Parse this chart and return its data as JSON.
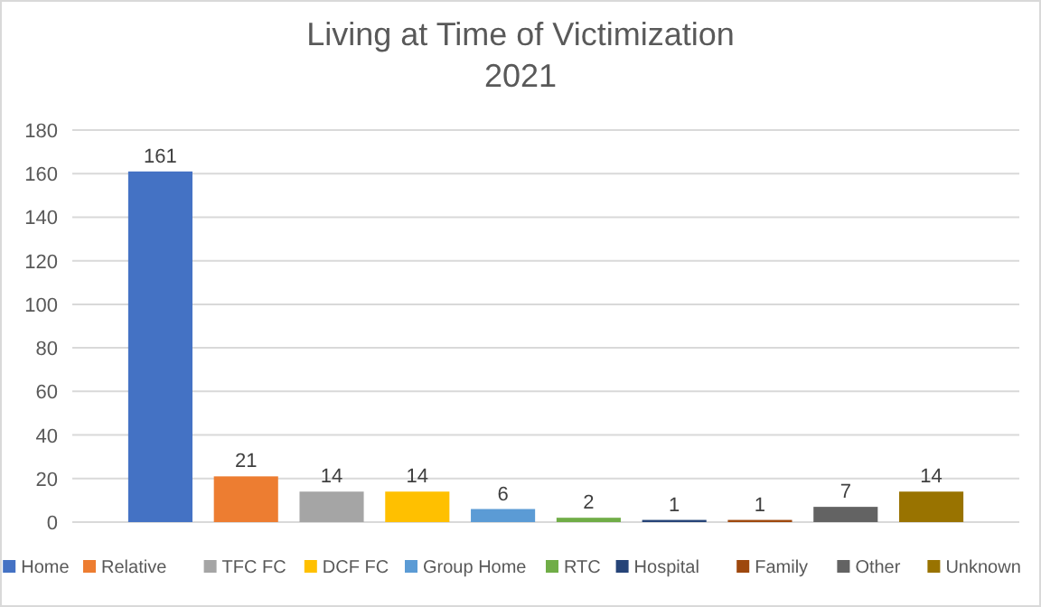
{
  "chart_data": {
    "type": "bar",
    "title": "Living at Time of Victimization",
    "subtitle": "2021",
    "categories": [
      null
    ],
    "series": [
      {
        "name": "Home",
        "color": "#4472c4",
        "values": [
          161
        ]
      },
      {
        "name": "Relative",
        "color": "#ed7d31",
        "values": [
          21
        ]
      },
      {
        "name": "TFC FC",
        "color": "#a5a5a5",
        "values": [
          14
        ]
      },
      {
        "name": "DCF FC",
        "color": "#ffc000",
        "values": [
          14
        ]
      },
      {
        "name": "Group Home",
        "color": "#5b9bd5",
        "values": [
          6
        ]
      },
      {
        "name": "RTC",
        "color": "#70ad47",
        "values": [
          2
        ]
      },
      {
        "name": "Hospital",
        "color": "#264478",
        "values": [
          1
        ]
      },
      {
        "name": "Family",
        "color": "#9e480e",
        "values": [
          1
        ]
      },
      {
        "name": "Other",
        "color": "#636363",
        "values": [
          7
        ]
      },
      {
        "name": "Unknown",
        "color": "#997300",
        "values": [
          14
        ]
      }
    ],
    "ylim": [
      0,
      180
    ],
    "yticks": [
      0,
      20,
      40,
      60,
      80,
      100,
      120,
      140,
      160,
      180
    ],
    "grid": "y",
    "legend": "bottom",
    "data_labels": true
  }
}
